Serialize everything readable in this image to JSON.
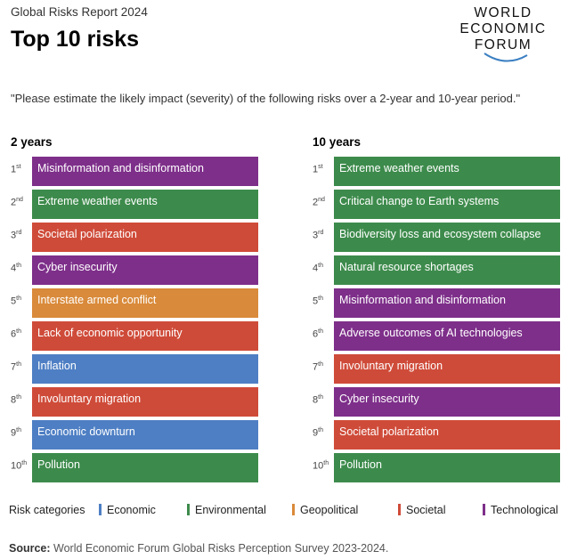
{
  "header": {
    "report_label": "Global Risks Report 2024",
    "title": "Top 10 risks",
    "logo": [
      "WORLD",
      "ECONOMIC",
      "FORUM"
    ]
  },
  "question": "\"Please estimate the likely impact (severity) of the following risks over a 2-year and 10-year period.\"",
  "colors": {
    "Economic": "#4e7fc4",
    "Environmental": "#3d8b4c",
    "Geopolitical": "#d98a3a",
    "Societal": "#cf4b39",
    "Technological": "#7e2f8a"
  },
  "columns": [
    {
      "heading": "2 years",
      "items": [
        {
          "rank": "1",
          "suffix": "st",
          "label": "Misinformation and disinformation",
          "category": "Technological"
        },
        {
          "rank": "2",
          "suffix": "nd",
          "label": "Extreme weather events",
          "category": "Environmental"
        },
        {
          "rank": "3",
          "suffix": "rd",
          "label": "Societal polarization",
          "category": "Societal"
        },
        {
          "rank": "4",
          "suffix": "th",
          "label": "Cyber insecurity",
          "category": "Technological"
        },
        {
          "rank": "5",
          "suffix": "th",
          "label": "Interstate armed conflict",
          "category": "Geopolitical"
        },
        {
          "rank": "6",
          "suffix": "th",
          "label": "Lack of economic opportunity",
          "category": "Societal"
        },
        {
          "rank": "7",
          "suffix": "th",
          "label": "Inflation",
          "category": "Economic"
        },
        {
          "rank": "8",
          "suffix": "th",
          "label": "Involuntary migration",
          "category": "Societal"
        },
        {
          "rank": "9",
          "suffix": "th",
          "label": "Economic downturn",
          "category": "Economic"
        },
        {
          "rank": "10",
          "suffix": "th",
          "label": "Pollution",
          "category": "Environmental"
        }
      ]
    },
    {
      "heading": "10 years",
      "items": [
        {
          "rank": "1",
          "suffix": "st",
          "label": "Extreme weather events",
          "category": "Environmental"
        },
        {
          "rank": "2",
          "suffix": "nd",
          "label": "Critical change to Earth systems",
          "category": "Environmental"
        },
        {
          "rank": "3",
          "suffix": "rd",
          "label": "Biodiversity loss and ecosystem collapse",
          "category": "Environmental"
        },
        {
          "rank": "4",
          "suffix": "th",
          "label": "Natural resource shortages",
          "category": "Environmental"
        },
        {
          "rank": "5",
          "suffix": "th",
          "label": "Misinformation and disinformation",
          "category": "Technological"
        },
        {
          "rank": "6",
          "suffix": "th",
          "label": "Adverse outcomes of AI technologies",
          "category": "Technological"
        },
        {
          "rank": "7",
          "suffix": "th",
          "label": "Involuntary migration",
          "category": "Societal"
        },
        {
          "rank": "8",
          "suffix": "th",
          "label": "Cyber insecurity",
          "category": "Technological"
        },
        {
          "rank": "9",
          "suffix": "th",
          "label": "Societal polarization",
          "category": "Societal"
        },
        {
          "rank": "10",
          "suffix": "th",
          "label": "Pollution",
          "category": "Environmental"
        }
      ]
    }
  ],
  "legend": {
    "title": "Risk categories",
    "items": [
      "Economic",
      "Environmental",
      "Geopolitical",
      "Societal",
      "Technological"
    ]
  },
  "source": {
    "label": "Source:",
    "text": "World Economic Forum Global Risks Perception Survey 2023-2024."
  }
}
